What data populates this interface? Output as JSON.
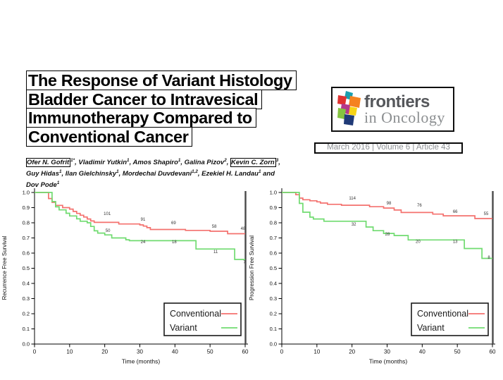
{
  "title": {
    "lines": [
      "The Response of Variant Histology",
      "Bladder Cancer to Intravesical",
      "Immunotherapy Compared to",
      "Conventional Cancer"
    ]
  },
  "authors": {
    "lines": [
      [
        {
          "t": "Ofer N. Gofrit",
          "box": true
        },
        {
          "t": "1*",
          "sup": true
        },
        {
          "t": ", Vladimir Yutkin"
        },
        {
          "t": "1",
          "sup": true
        },
        {
          "t": ", Amos Shapiro"
        },
        {
          "t": "1",
          "sup": true
        },
        {
          "t": ", Galina Pizov"
        },
        {
          "t": "2",
          "sup": true
        },
        {
          "t": ", "
        },
        {
          "t": "Kevin C. Zorn",
          "box": true
        },
        {
          "t": "3",
          "sup": true
        },
        {
          "t": ","
        }
      ],
      [
        {
          "t": "Guy Hidas"
        },
        {
          "t": "1",
          "sup": true
        },
        {
          "t": ", Ilan Gielchinsky"
        },
        {
          "t": "1",
          "sup": true
        },
        {
          "t": ", Mordechai Duvdevani"
        },
        {
          "t": "1,2",
          "sup": true
        },
        {
          "t": ", Ezekiel H. Landau"
        },
        {
          "t": "1",
          "sup": true
        },
        {
          "t": " and"
        }
      ],
      [
        {
          "t": "Dov Pode"
        },
        {
          "t": "1",
          "sup": true
        }
      ]
    ]
  },
  "journal": {
    "name_top": "frontiers",
    "name_bottom": "in Oncology",
    "cube_colors": [
      "#1a9fb0",
      "#e03231",
      "#f58220",
      "#f7d417",
      "#b4398c",
      "#85c440",
      "#203a77"
    ]
  },
  "issue_line": {
    "text": "March 2016  |  Volume 6  |  Article 43"
  },
  "chart_data": [
    {
      "type": "line",
      "subtype": "kaplan-meier-step",
      "title": "",
      "xlabel": "Time (months)",
      "ylabel": "Recurrence Free Survival",
      "xlim": [
        0,
        60
      ],
      "ylim": [
        0.0,
        1.0
      ],
      "xticks": [
        0,
        10,
        20,
        30,
        40,
        50,
        60
      ],
      "yticks": [
        0.0,
        0.1,
        0.2,
        0.3,
        0.4,
        0.5,
        0.6,
        0.7,
        0.8,
        0.9,
        1.0
      ],
      "grid": false,
      "legend": {
        "position": "bottom-right",
        "entries": [
          {
            "label": "Conventional",
            "color": "#f4716e"
          },
          {
            "label": "Variant",
            "color": "#70db70"
          }
        ]
      },
      "series": [
        {
          "name": "Conventional",
          "color": "#f4716e",
          "steps": [
            [
              0,
              1.0
            ],
            [
              4,
              1.0
            ],
            [
              4,
              0.96
            ],
            [
              5,
              0.96
            ],
            [
              5,
              0.935
            ],
            [
              6,
              0.935
            ],
            [
              6,
              0.915
            ],
            [
              8,
              0.915
            ],
            [
              8,
              0.9
            ],
            [
              10,
              0.9
            ],
            [
              10,
              0.89
            ],
            [
              11,
              0.89
            ],
            [
              11,
              0.875
            ],
            [
              12,
              0.875
            ],
            [
              12,
              0.862
            ],
            [
              13,
              0.862
            ],
            [
              13,
              0.85
            ],
            [
              14,
              0.85
            ],
            [
              14,
              0.838
            ],
            [
              15,
              0.838
            ],
            [
              15,
              0.825
            ],
            [
              16,
              0.825
            ],
            [
              16,
              0.812
            ],
            [
              17,
              0.812
            ],
            [
              17,
              0.803
            ],
            [
              24,
              0.803
            ],
            [
              24,
              0.792
            ],
            [
              30,
              0.792
            ],
            [
              30,
              0.786
            ],
            [
              31,
              0.786
            ],
            [
              31,
              0.778
            ],
            [
              32,
              0.778
            ],
            [
              32,
              0.768
            ],
            [
              33,
              0.768
            ],
            [
              33,
              0.756
            ],
            [
              43,
              0.756
            ],
            [
              43,
              0.75
            ],
            [
              50,
              0.75
            ],
            [
              50,
              0.744
            ],
            [
              55,
              0.744
            ],
            [
              55,
              0.728
            ],
            [
              60,
              0.728
            ]
          ]
        },
        {
          "name": "Variant",
          "color": "#70db70",
          "steps": [
            [
              0,
              1.0
            ],
            [
              5,
              1.0
            ],
            [
              5,
              0.94
            ],
            [
              6,
              0.94
            ],
            [
              6,
              0.905
            ],
            [
              7,
              0.905
            ],
            [
              7,
              0.885
            ],
            [
              9,
              0.885
            ],
            [
              9,
              0.863
            ],
            [
              10,
              0.863
            ],
            [
              10,
              0.845
            ],
            [
              12,
              0.845
            ],
            [
              12,
              0.826
            ],
            [
              13,
              0.826
            ],
            [
              13,
              0.81
            ],
            [
              15,
              0.81
            ],
            [
              15,
              0.8
            ],
            [
              16,
              0.8
            ],
            [
              16,
              0.776
            ],
            [
              17,
              0.776
            ],
            [
              17,
              0.747
            ],
            [
              18,
              0.747
            ],
            [
              18,
              0.732
            ],
            [
              20,
              0.732
            ],
            [
              20,
              0.72
            ],
            [
              22,
              0.72
            ],
            [
              22,
              0.7
            ],
            [
              26,
              0.7
            ],
            [
              26,
              0.688
            ],
            [
              27,
              0.688
            ],
            [
              27,
              0.682
            ],
            [
              46,
              0.682
            ],
            [
              46,
              0.627
            ],
            [
              57,
              0.627
            ],
            [
              57,
              0.558
            ],
            [
              60,
              0.558
            ]
          ]
        }
      ],
      "annotations": [
        {
          "series": "Conventional",
          "x": 20.7,
          "y": 0.851,
          "text": "101"
        },
        {
          "series": "Conventional",
          "x": 30.9,
          "y": 0.814,
          "text": "91"
        },
        {
          "series": "Conventional",
          "x": 39.6,
          "y": 0.79,
          "text": "69"
        },
        {
          "series": "Conventional",
          "x": 51.2,
          "y": 0.767,
          "text": "58"
        },
        {
          "series": "Conventional",
          "x": 59.4,
          "y": 0.753,
          "text": "48"
        },
        {
          "series": "Variant",
          "x": 20.9,
          "y": 0.74,
          "text": "50"
        },
        {
          "series": "Variant",
          "x": 30.9,
          "y": 0.665,
          "text": "24"
        },
        {
          "series": "Variant",
          "x": 39.8,
          "y": 0.665,
          "text": "18"
        },
        {
          "series": "Variant",
          "x": 51.6,
          "y": 0.601,
          "text": "11"
        },
        {
          "series": "Variant",
          "x": 59.8,
          "y": 0.533,
          "text": "7"
        }
      ]
    },
    {
      "type": "line",
      "subtype": "kaplan-meier-step",
      "title": "",
      "xlabel": "Time (months)",
      "ylabel": "Progression Free Survival",
      "xlim": [
        0,
        60
      ],
      "ylim": [
        0.0,
        1.0
      ],
      "xticks": [
        0,
        10,
        20,
        30,
        40,
        50,
        60
      ],
      "yticks": [
        0.0,
        0.1,
        0.2,
        0.3,
        0.4,
        0.5,
        0.6,
        0.7,
        0.8,
        0.9,
        1.0
      ],
      "grid": false,
      "legend": {
        "position": "bottom-right",
        "entries": [
          {
            "label": "Conventional",
            "color": "#f4716e"
          },
          {
            "label": "Variant",
            "color": "#70db70"
          }
        ]
      },
      "series": [
        {
          "name": "Conventional",
          "color": "#f4716e",
          "steps": [
            [
              0,
              1.0
            ],
            [
              4,
              1.0
            ],
            [
              4,
              0.985
            ],
            [
              5,
              0.985
            ],
            [
              5,
              0.963
            ],
            [
              6,
              0.963
            ],
            [
              6,
              0.952
            ],
            [
              8,
              0.952
            ],
            [
              8,
              0.945
            ],
            [
              10,
              0.945
            ],
            [
              10,
              0.938
            ],
            [
              11,
              0.938
            ],
            [
              11,
              0.93
            ],
            [
              13,
              0.93
            ],
            [
              13,
              0.922
            ],
            [
              17,
              0.922
            ],
            [
              17,
              0.916
            ],
            [
              25,
              0.916
            ],
            [
              25,
              0.906
            ],
            [
              29,
              0.906
            ],
            [
              29,
              0.897
            ],
            [
              32,
              0.897
            ],
            [
              32,
              0.884
            ],
            [
              34,
              0.884
            ],
            [
              34,
              0.868
            ],
            [
              43,
              0.868
            ],
            [
              43,
              0.857
            ],
            [
              46,
              0.857
            ],
            [
              46,
              0.846
            ],
            [
              55,
              0.846
            ],
            [
              55,
              0.828
            ],
            [
              60,
              0.828
            ]
          ]
        },
        {
          "name": "Variant",
          "color": "#70db70",
          "steps": [
            [
              0,
              1.0
            ],
            [
              5,
              1.0
            ],
            [
              5,
              0.928
            ],
            [
              6,
              0.928
            ],
            [
              6,
              0.87
            ],
            [
              8,
              0.87
            ],
            [
              8,
              0.837
            ],
            [
              9,
              0.837
            ],
            [
              9,
              0.825
            ],
            [
              12,
              0.825
            ],
            [
              12,
              0.81
            ],
            [
              24,
              0.81
            ],
            [
              24,
              0.772
            ],
            [
              26,
              0.772
            ],
            [
              26,
              0.748
            ],
            [
              29,
              0.748
            ],
            [
              29,
              0.73
            ],
            [
              32,
              0.73
            ],
            [
              32,
              0.716
            ],
            [
              36,
              0.716
            ],
            [
              36,
              0.687
            ],
            [
              52,
              0.687
            ],
            [
              52,
              0.63
            ],
            [
              57,
              0.63
            ],
            [
              57,
              0.565
            ],
            [
              60,
              0.565
            ]
          ]
        }
      ],
      "annotations": [
        {
          "series": "Conventional",
          "x": 20.1,
          "y": 0.953,
          "text": "114"
        },
        {
          "series": "Conventional",
          "x": 30.5,
          "y": 0.921,
          "text": "98"
        },
        {
          "series": "Conventional",
          "x": 39.2,
          "y": 0.907,
          "text": "76"
        },
        {
          "series": "Conventional",
          "x": 49.4,
          "y": 0.865,
          "text": "66"
        },
        {
          "series": "Conventional",
          "x": 58.2,
          "y": 0.851,
          "text": "55"
        },
        {
          "series": "Variant",
          "x": 20.5,
          "y": 0.781,
          "text": "32"
        },
        {
          "series": "Variant",
          "x": 30.1,
          "y": 0.716,
          "text": "28"
        },
        {
          "series": "Variant",
          "x": 38.8,
          "y": 0.668,
          "text": "20"
        },
        {
          "series": "Variant",
          "x": 49.4,
          "y": 0.668,
          "text": "13"
        },
        {
          "series": "Variant",
          "x": 59.0,
          "y": 0.563,
          "text": "8"
        }
      ]
    }
  ]
}
